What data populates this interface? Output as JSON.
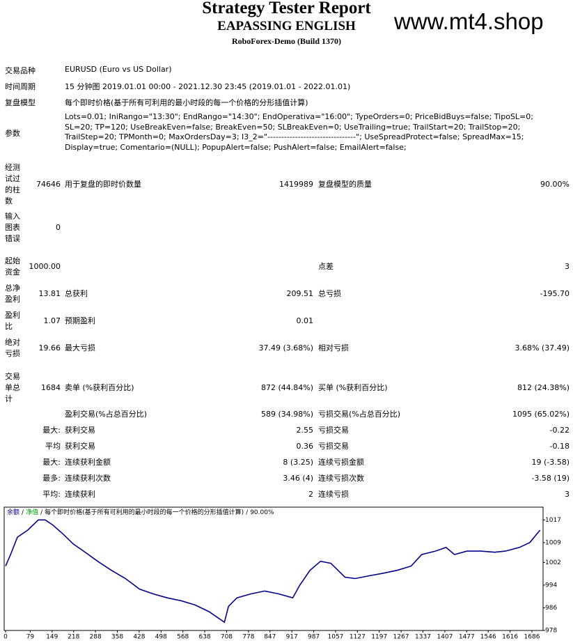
{
  "header": {
    "title": "Strategy Tester Report",
    "subtitle": "EAPASSING ENGLISH",
    "server": "RoboForex-Demo (Build 1370)",
    "watermark": "www.mt4.shop"
  },
  "info": [
    {
      "label": "交易品种",
      "value": "EURUSD (Euro vs US Dollar)"
    },
    {
      "label": "时间周期",
      "value": "15 分钟图 2019.01.01 00:00 - 2021.12.30 23:45 (2019.01.01 - 2022.01.01)"
    },
    {
      "label": "复盘模型",
      "value": "每个即时价格(基于所有可利用的最小时段的每一个价格的分形插值计算)"
    },
    {
      "label": "参数",
      "value": "Lots=0.01; IniRango=\"13:30\"; EndRango=\"14:30\"; EndOperativa=\"16:00\"; TypeOrders=0; PriceBidBuys=false; TipoSL=0; SL=20; TP=120; UseBreakEven=false; BreakEven=50; SLBreakEven=0; UseTrailing=true; TrailStart=20; TrailStop=20; TrailStep=20; TPMonth=0; MaxOrdersDay=3; I3_2=\"--------------------------------\"; UseSpreadProtect=false; SpreadMax=15; Display=true; Comentario=(NULL); PopupAlert=false; PushAlert=false; EmailAlert=false;"
    }
  ],
  "stats": {
    "rows": [
      [
        "经测试过的柱数",
        "74646",
        "用于复盘的即时价数量",
        "1419989",
        "复盘模型的质量",
        "90.00%"
      ],
      [
        "输入图表错误",
        "0",
        null,
        null,
        null,
        null
      ],
      [
        "起始资金",
        "1000.00",
        null,
        null,
        "点差",
        "3"
      ],
      [
        "总净盈利",
        "13.81",
        "总获利",
        "209.51",
        "总亏损",
        "-195.70"
      ],
      [
        "盈利比",
        "1.07",
        "预期盈利",
        "0.01",
        null,
        null
      ],
      [
        "绝对亏损",
        "19.66",
        "最大亏损",
        "37.49 (3.68%)",
        "相对亏损",
        "3.68% (37.49)"
      ],
      [
        "交易单总计",
        "1684",
        "卖单 (%获利百分比)",
        "872 (44.84%)",
        "买单 (%获利百分比)",
        "812 (24.38%)"
      ],
      [
        null,
        null,
        "盈利交易(%占总百分比)",
        "589 (34.98%)",
        "亏损交易(%占总百分比)",
        "1095 (65.02%)"
      ],
      [
        null,
        "最大:",
        "获利交易",
        "2.55",
        "亏损交易",
        "-0.22"
      ],
      [
        null,
        "平均",
        "获利交易",
        "0.36",
        "亏损交易",
        "-0.18"
      ],
      [
        null,
        "最大:",
        "连续获利金额",
        "8 (3.25)",
        "连续亏损金额",
        "19 (-3.58)"
      ],
      [
        null,
        "最多:",
        "连续获利次数",
        "3.46 (4)",
        "连续亏损次数",
        "-3.58 (19)"
      ],
      [
        null,
        "平均:",
        "连续获利",
        "2",
        "连续亏损",
        "3"
      ]
    ]
  },
  "chart_data": {
    "type": "line",
    "legend": [
      {
        "text": "余额",
        "color": "#00008b"
      },
      {
        "text": "净值",
        "color": "#00a000"
      },
      {
        "text": "每个即时价格(基于所有可利用的最小时段的每一个价格的分形插值计算)",
        "color": "#000000"
      },
      {
        "text": "90.00%",
        "color": "#000000"
      }
    ],
    "legend_separator": "/",
    "x": [
      0,
      16,
      38,
      71,
      105,
      127,
      150,
      183,
      217,
      250,
      295,
      339,
      384,
      429,
      473,
      518,
      562,
      607,
      652,
      685,
      701,
      714,
      741,
      786,
      830,
      875,
      920,
      942,
      975,
      1009,
      1042,
      1087,
      1120,
      1165,
      1210,
      1254,
      1299,
      1333,
      1377,
      1411,
      1438,
      1478,
      1523,
      1567,
      1601,
      1646,
      1679,
      1697,
      1712
    ],
    "series": [
      {
        "color": "#00008b",
        "values": [
          1000.7,
          1004.8,
          1010.9,
          1013.4,
          1017.0,
          1017.0,
          1015.3,
          1012.1,
          1008.5,
          1006.0,
          1002.4,
          999.2,
          996.3,
          992.6,
          990.9,
          989.5,
          988.5,
          987.0,
          984.6,
          982.1,
          980.9,
          986.5,
          989.5,
          990.9,
          991.9,
          990.9,
          989.5,
          993.9,
          999.2,
          1002.4,
          1001.7,
          996.8,
          996.3,
          997.3,
          998.2,
          999.2,
          1000.7,
          1004.8,
          1006.0,
          1007.3,
          1004.8,
          1006.0,
          1006.0,
          1005.6,
          1006.0,
          1007.3,
          1009.0,
          1011.4,
          1013.4
        ]
      }
    ],
    "xlim": [
      0,
      1722
    ],
    "ylim": [
      978,
      1021.5
    ],
    "xticks": [
      0,
      79,
      149,
      218,
      288,
      358,
      428,
      498,
      568,
      638,
      708,
      778,
      847,
      917,
      987,
      1057,
      1127,
      1197,
      1267,
      1337,
      1407,
      1477,
      1546,
      1616,
      1686
    ],
    "yticks": [
      1017,
      1009,
      1002,
      994,
      986,
      978
    ]
  }
}
